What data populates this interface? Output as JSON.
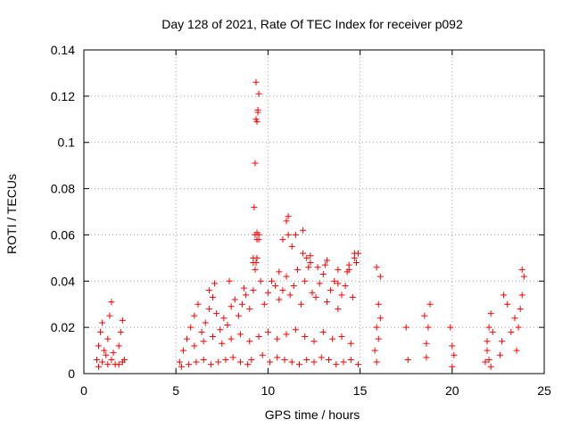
{
  "chart_data": {
    "type": "scatter",
    "title": "Day 128 of 2021, Rate Of TEC Index for receiver p092",
    "xlabel": "GPS time / hours",
    "ylabel": "ROTI / TECUs",
    "xlim": [
      0,
      25
    ],
    "ylim": [
      0,
      0.14
    ],
    "x_ticks": [
      "0",
      "5",
      "10",
      "15",
      "20",
      "25"
    ],
    "y_ticks": [
      "0",
      "0.02",
      "0.04",
      "0.06",
      "0.08",
      "0.1",
      "0.12",
      "0.14"
    ],
    "grid": true,
    "marker": "+",
    "marker_color": "#ff0000",
    "series": [
      {
        "x": [
          0.7,
          0.8,
          0.9,
          1.0,
          1.1,
          1.2,
          1.3,
          1.4,
          1.5,
          1.6,
          1.7,
          1.9,
          2.0,
          2.1,
          2.2,
          0.8,
          1.0,
          1.3,
          1.5,
          1.9,
          2.1,
          5.2,
          5.4,
          5.6,
          5.8,
          6.0,
          6.2,
          6.4,
          6.6,
          6.8,
          7.0,
          7.2,
          7.4,
          7.6,
          7.8,
          8.0,
          8.2,
          8.4,
          8.6,
          8.8,
          9.0,
          9.2,
          9.3,
          9.4,
          9.5,
          9.6,
          9.8,
          10.0,
          10.2,
          10.4,
          10.6,
          10.8,
          11.0,
          11.2,
          11.4,
          11.6,
          11.8,
          12.0,
          12.2,
          12.4,
          12.6,
          12.8,
          13.0,
          13.2,
          13.4,
          13.6,
          13.8,
          14.0,
          14.2,
          14.4,
          14.6,
          14.8,
          5.3,
          5.7,
          6.1,
          6.5,
          6.9,
          7.3,
          7.7,
          8.1,
          8.5,
          8.9,
          9.1,
          9.7,
          10.1,
          10.5,
          10.9,
          11.3,
          11.7,
          12.1,
          12.5,
          12.9,
          13.3,
          13.7,
          14.1,
          14.5,
          14.9,
          6.0,
          6.5,
          7.0,
          7.5,
          8.0,
          8.5,
          9.0,
          9.5,
          10.0,
          10.5,
          11.0,
          11.5,
          12.0,
          12.5,
          13.0,
          13.5,
          14.0,
          14.5,
          6.8,
          7.1,
          7.9,
          8.7,
          9.2,
          9.4,
          10.6,
          11.1,
          11.9,
          12.3,
          13.1,
          13.8,
          14.3,
          14.7,
          9.25,
          9.3,
          9.35,
          9.4,
          9.45,
          9.5,
          9.35,
          9.45,
          9.3,
          9.4,
          9.5,
          9.2,
          9.35,
          10.8,
          11.0,
          11.1,
          11.3,
          11.5,
          11.9,
          12.1,
          12.3,
          12.7,
          13.2,
          13.8,
          14.4,
          14.7,
          14.9,
          15.8,
          15.9,
          16.0,
          16.1,
          15.9,
          16.0,
          16.1,
          15.9,
          17.5,
          17.6,
          18.5,
          18.6,
          18.7,
          18.8,
          18.6,
          19.9,
          20.0,
          20.1,
          20.0,
          21.8,
          21.9,
          22.0,
          22.1,
          22.2,
          21.9,
          22.0,
          22.1,
          22.6,
          22.8,
          23.0,
          23.2,
          23.4,
          23.6,
          23.8,
          23.9,
          23.8,
          23.7,
          22.7,
          23.5
        ],
        "y": [
          0.006,
          0.012,
          0.018,
          0.022,
          0.01,
          0.008,
          0.015,
          0.025,
          0.031,
          0.009,
          0.004,
          0.012,
          0.018,
          0.023,
          0.006,
          0.003,
          0.005,
          0.004,
          0.006,
          0.004,
          0.005,
          0.005,
          0.01,
          0.015,
          0.02,
          0.025,
          0.03,
          0.018,
          0.022,
          0.028,
          0.033,
          0.026,
          0.019,
          0.024,
          0.021,
          0.029,
          0.032,
          0.025,
          0.03,
          0.034,
          0.028,
          0.036,
          0.045,
          0.05,
          0.06,
          0.04,
          0.03,
          0.035,
          0.04,
          0.038,
          0.032,
          0.036,
          0.042,
          0.034,
          0.038,
          0.045,
          0.03,
          0.04,
          0.046,
          0.035,
          0.033,
          0.039,
          0.043,
          0.031,
          0.036,
          0.04,
          0.028,
          0.034,
          0.038,
          0.045,
          0.033,
          0.048,
          0.003,
          0.004,
          0.005,
          0.006,
          0.004,
          0.005,
          0.006,
          0.007,
          0.005,
          0.004,
          0.006,
          0.008,
          0.005,
          0.007,
          0.006,
          0.005,
          0.004,
          0.006,
          0.005,
          0.007,
          0.006,
          0.004,
          0.005,
          0.006,
          0.004,
          0.012,
          0.014,
          0.016,
          0.013,
          0.015,
          0.017,
          0.014,
          0.016,
          0.018,
          0.015,
          0.017,
          0.019,
          0.016,
          0.014,
          0.018,
          0.015,
          0.016,
          0.013,
          0.036,
          0.039,
          0.04,
          0.037,
          0.048,
          0.058,
          0.044,
          0.06,
          0.062,
          0.051,
          0.047,
          0.039,
          0.044,
          0.052,
          0.072,
          0.091,
          0.11,
          0.109,
          0.113,
          0.121,
          0.126,
          0.114,
          0.06,
          0.061,
          0.058,
          0.05,
          0.048,
          0.058,
          0.066,
          0.068,
          0.055,
          0.06,
          0.052,
          0.05,
          0.048,
          0.046,
          0.049,
          0.045,
          0.047,
          0.05,
          0.052,
          0.01,
          0.02,
          0.03,
          0.042,
          0.046,
          0.015,
          0.024,
          0.005,
          0.02,
          0.006,
          0.025,
          0.013,
          0.02,
          0.03,
          0.007,
          0.02,
          0.012,
          0.008,
          0.003,
          0.005,
          0.014,
          0.02,
          0.026,
          0.018,
          0.01,
          0.006,
          0.003,
          0.008,
          0.034,
          0.03,
          0.018,
          0.024,
          0.02,
          0.045,
          0.042,
          0.034,
          0.028,
          0.014,
          0.01
        ]
      }
    ]
  }
}
